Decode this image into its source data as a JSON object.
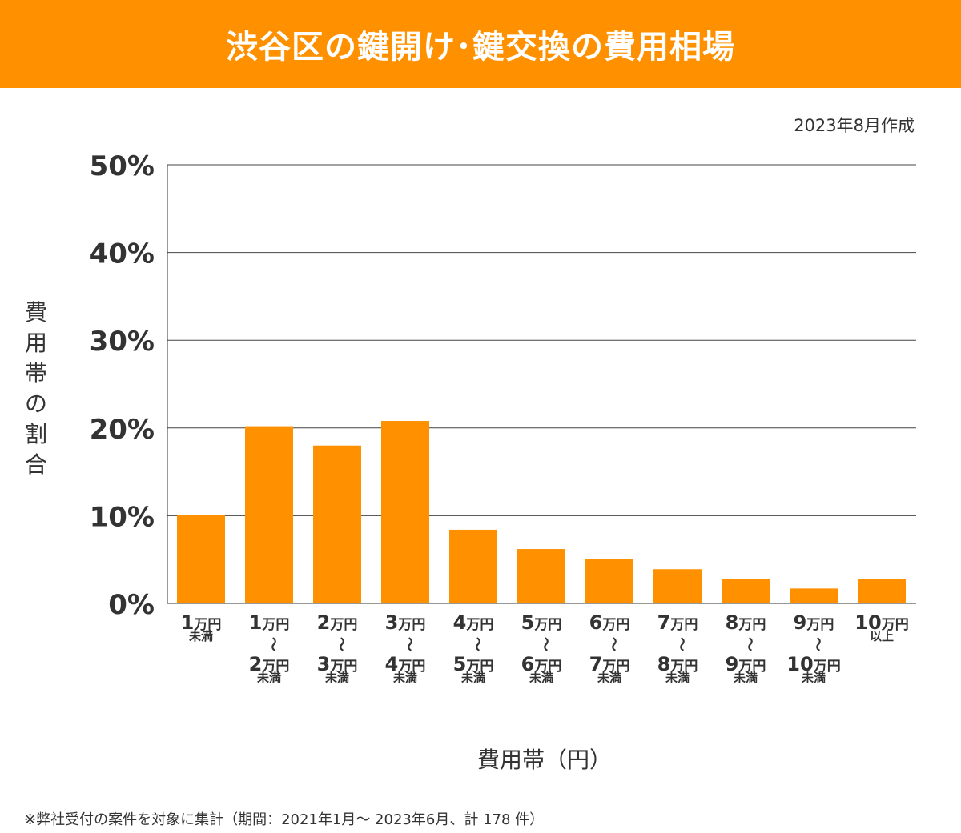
{
  "title": "渋谷区の鍵開け･鍵交換の費用相場",
  "date_note": "2023年8月作成",
  "footnote": "※弊社受付の案件を対象に集計（期間：2021年1月～ 2023年6月、計 178 件）",
  "colors": {
    "header": "#FF9000",
    "bar": "#FF9000",
    "grid": "#333333"
  },
  "chart_data": {
    "type": "bar",
    "title": "",
    "xlabel": "費用帯（円）",
    "ylabel": "費用帯の割合",
    "ylim": [
      0,
      50
    ],
    "yticks": [
      "0%",
      "10%",
      "20%",
      "30%",
      "40%",
      "50%"
    ],
    "grid": true,
    "categories": [
      [
        "1万円",
        "未満"
      ],
      [
        "1万円",
        "〜",
        "2万円",
        "未満"
      ],
      [
        "2万円",
        "〜",
        "3万円",
        "未満"
      ],
      [
        "3万円",
        "〜",
        "4万円",
        "未満"
      ],
      [
        "4万円",
        "〜",
        "5万円",
        "未満"
      ],
      [
        "5万円",
        "〜",
        "6万円",
        "未満"
      ],
      [
        "6万円",
        "〜",
        "7万円",
        "未満"
      ],
      [
        "7万円",
        "〜",
        "8万円",
        "未満"
      ],
      [
        "8万円",
        "〜",
        "9万円",
        "未満"
      ],
      [
        "9万円",
        "〜",
        "10万円",
        "未満"
      ],
      [
        "10万円",
        "以上"
      ]
    ],
    "values": [
      10.1,
      20.2,
      18.0,
      20.8,
      8.4,
      6.2,
      5.1,
      3.9,
      2.8,
      1.7,
      2.8
    ]
  }
}
